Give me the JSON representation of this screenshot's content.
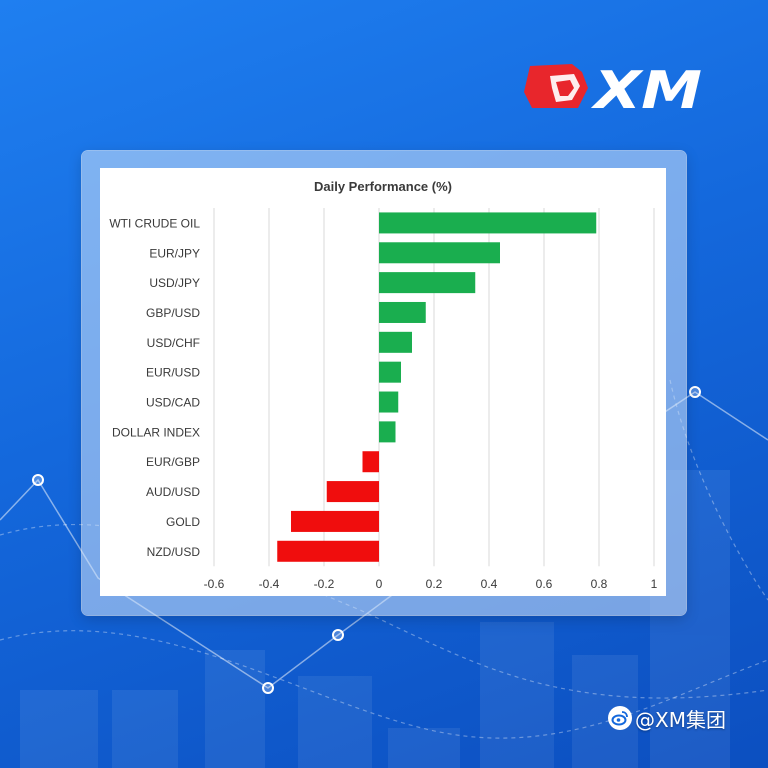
{
  "brand": {
    "logo_text": "XM",
    "watermark_text": "@XM集团",
    "watermark_icon": "weibo-icon",
    "accent_red": "#e8262c",
    "background_blue": "#1468dc"
  },
  "chart_data": {
    "type": "bar",
    "orientation": "horizontal",
    "title": "Daily Performance (%)",
    "categories": [
      "WTI CRUDE OIL",
      "EUR/JPY",
      "USD/JPY",
      "GBP/USD",
      "USD/CHF",
      "EUR/USD",
      "USD/CAD",
      "DOLLAR INDEX",
      "EUR/GBP",
      "AUD/USD",
      "GOLD",
      "NZD/USD"
    ],
    "values": [
      0.79,
      0.44,
      0.35,
      0.17,
      0.12,
      0.08,
      0.07,
      0.06,
      -0.06,
      -0.19,
      -0.32,
      -0.37
    ],
    "xlim": [
      -0.6,
      1
    ],
    "xticks": [
      -0.6,
      -0.4,
      -0.2,
      0,
      0.2,
      0.4,
      0.6,
      0.8,
      1
    ],
    "xtick_labels": [
      "-0.6",
      "-0.4",
      "-0.2",
      "0",
      "0.2",
      "0.4",
      "0.6",
      "0.8",
      "1"
    ],
    "xlabel": "",
    "ylabel": "",
    "grid": "vertical",
    "legend": "none",
    "colors": {
      "positive": "#1aae4f",
      "negative": "#f00d0d",
      "grid": "#d9d9d9",
      "text": "#3a3a3a"
    }
  }
}
